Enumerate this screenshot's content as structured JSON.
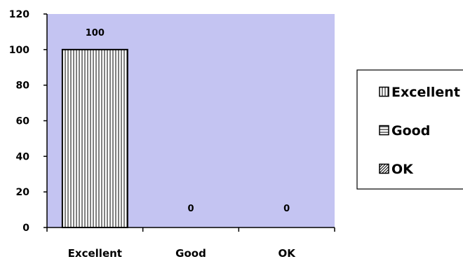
{
  "chart_data": {
    "type": "bar",
    "categories": [
      "Excellent",
      "Good",
      "OK"
    ],
    "values": [
      100,
      0,
      0
    ],
    "data_labels": [
      "100",
      "0",
      "0"
    ],
    "ylim": [
      0,
      120
    ],
    "yticks": [
      0,
      20,
      40,
      60,
      80,
      100,
      120
    ],
    "ytick_labels": [
      "0",
      "20",
      "40",
      "60",
      "80",
      "100",
      "120"
    ],
    "title": "",
    "xlabel": "",
    "ylabel": "",
    "grid": false,
    "legend": {
      "position": "right",
      "entries": [
        {
          "label": "Excellent",
          "pattern": "vertical-lines"
        },
        {
          "label": "Good",
          "pattern": "horizontal-lines"
        },
        {
          "label": "OK",
          "pattern": "diagonal-lines"
        }
      ]
    },
    "colors": {
      "plot_background": "#c4c4f2",
      "bar_fill": "#ffffff",
      "bar_pattern": "#000000",
      "axis": "#000000"
    }
  }
}
